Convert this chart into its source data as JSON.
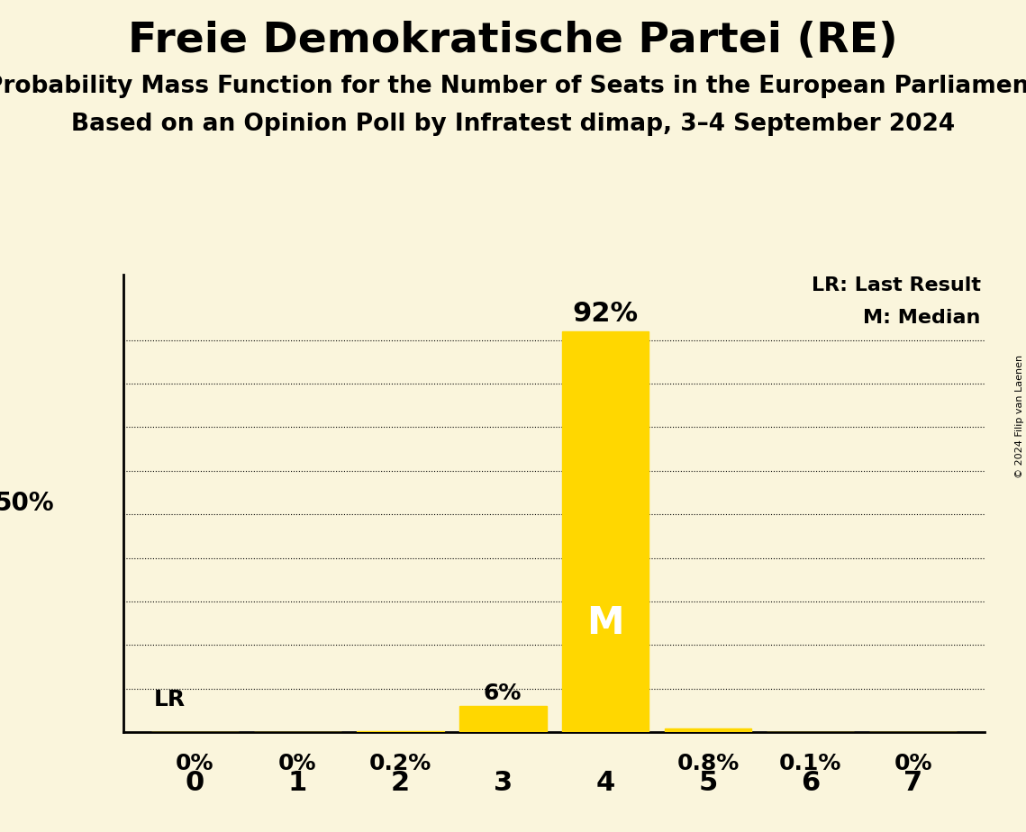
{
  "title": "Freie Demokratische Partei (RE)",
  "subtitle1": "Probability Mass Function for the Number of Seats in the European Parliament",
  "subtitle2": "Based on an Opinion Poll by Infratest dimap, 3–4 September 2024",
  "copyright": "© 2024 Filip van Laenen",
  "seats": [
    0,
    1,
    2,
    3,
    4,
    5,
    6,
    7
  ],
  "probabilities": [
    0.0,
    0.0,
    0.002,
    0.06,
    0.92,
    0.008,
    0.001,
    0.0
  ],
  "bar_color": "#FFD700",
  "median_seat": 4,
  "last_result_seat": 0,
  "background_color": "#FAF5DC",
  "bar_label_fontsize": 18,
  "title_fontsize": 34,
  "subtitle_fontsize": 19,
  "ylim": [
    0.0,
    1.05
  ],
  "legend_lr": "LR: Last Result",
  "legend_m": "M: Median"
}
